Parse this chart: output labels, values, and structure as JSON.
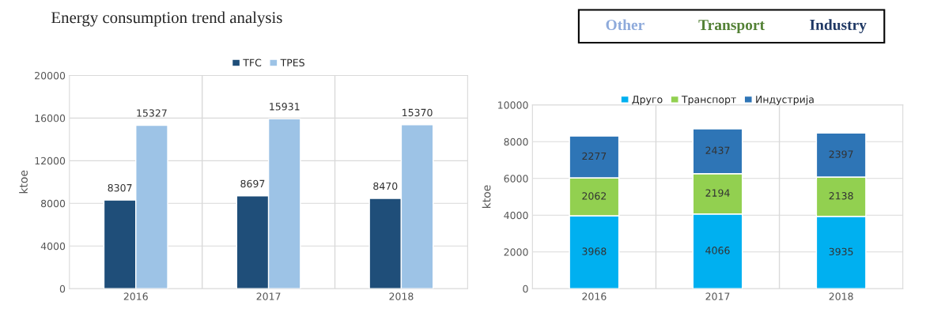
{
  "chart_data": [
    {
      "type": "bar",
      "title": "Energy consumption trend analysis",
      "ylabel": "ktoe",
      "categories": [
        "2016",
        "2017",
        "2018"
      ],
      "series": [
        {
          "name": "TFC",
          "color": "#1f4e79",
          "values": [
            8307,
            8697,
            8470
          ]
        },
        {
          "name": "TPES",
          "color": "#9dc3e6",
          "values": [
            15327,
            15931,
            15370
          ]
        }
      ],
      "ylim": [
        0,
        20000
      ],
      "yticks": [
        0,
        4000,
        8000,
        12000,
        16000,
        20000
      ],
      "grid": true,
      "legend": "top",
      "data_labels": true
    },
    {
      "type": "bar",
      "stacked": true,
      "ylabel": "ktoe",
      "categories": [
        "2016",
        "2017",
        "2018"
      ],
      "series": [
        {
          "name": "Друго",
          "color": "#00b0f0",
          "values": [
            3968,
            4066,
            3935
          ]
        },
        {
          "name": "Транспорт",
          "color": "#92d050",
          "values": [
            2062,
            2194,
            2138
          ]
        },
        {
          "name": "Индустрија",
          "color": "#2e75b6",
          "values": [
            2277,
            2437,
            2397
          ]
        }
      ],
      "ylim": [
        0,
        10000
      ],
      "yticks": [
        0,
        2000,
        4000,
        6000,
        8000,
        10000
      ],
      "grid": true,
      "legend": "top",
      "data_labels": true,
      "annotations": [
        "Other",
        "Transport",
        "Industry"
      ]
    }
  ]
}
